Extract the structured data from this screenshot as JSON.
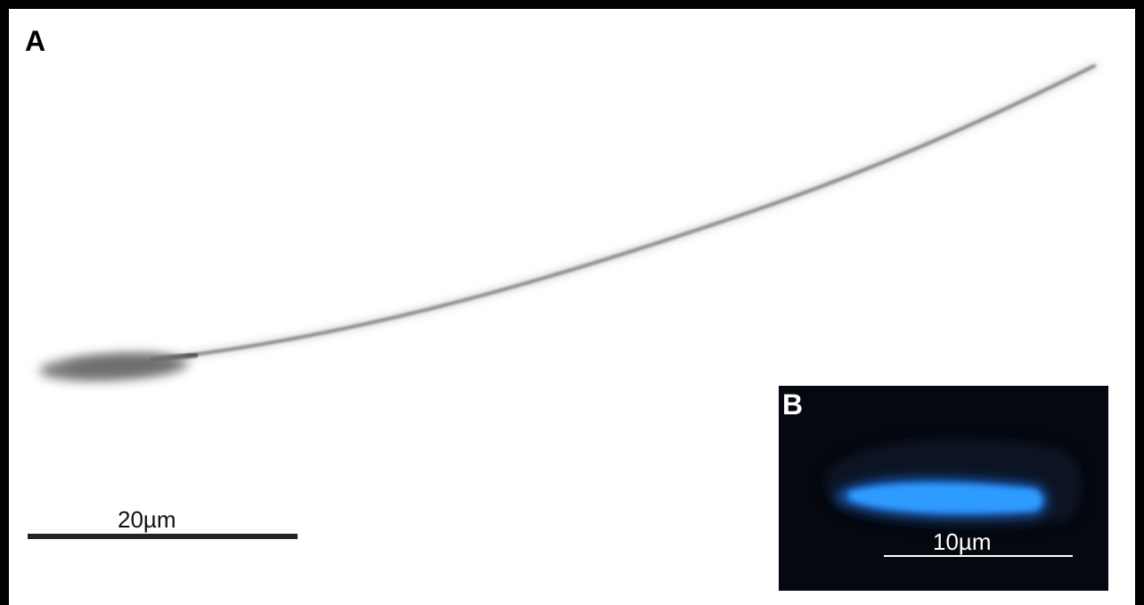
{
  "panel_a": {
    "label": "A",
    "scale_bar_label": "20µm"
  },
  "panel_b": {
    "label": "B",
    "scale_bar_label": "10µm"
  },
  "colors": {
    "background": "#ffffff",
    "border": "#000000",
    "sperm_gray": "#8a8a8a",
    "inset_background": "#05080e",
    "fluorescence_blue": "#1e8fff"
  }
}
